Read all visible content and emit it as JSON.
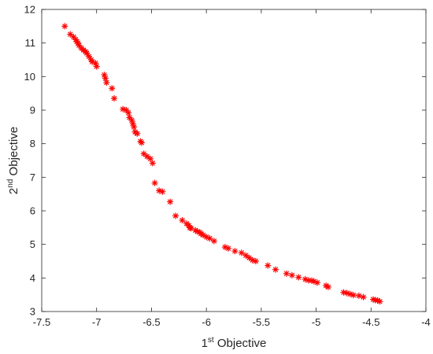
{
  "chart_data": {
    "type": "scatter",
    "title": "",
    "xlabel": {
      "base": "1",
      "sup": "st",
      "rest": " Objective"
    },
    "ylabel": {
      "base": "2",
      "sup": "nd",
      "rest": " Objective"
    },
    "xlim": [
      -7.5,
      -4
    ],
    "ylim": [
      3,
      12
    ],
    "xticks": [
      -7.5,
      -7,
      -6.5,
      -6,
      -5.5,
      -5,
      -4.5,
      -4
    ],
    "yticks": [
      3,
      4,
      5,
      6,
      7,
      8,
      9,
      10,
      11,
      12
    ],
    "xtick_labels": [
      "-7.5",
      "-7",
      "-6.5",
      "-6",
      "-5.5",
      "-5",
      "-4.5",
      "-4"
    ],
    "ytick_labels": [
      "3",
      "4",
      "5",
      "6",
      "7",
      "8",
      "9",
      "10",
      "11",
      "12"
    ],
    "grid": false,
    "marker": "asterisk",
    "colors": {
      "marker": "#ff0000",
      "axes": "#262626"
    },
    "series": [
      {
        "points": [
          [
            -7.29,
            11.5
          ],
          [
            -7.24,
            11.26
          ],
          [
            -7.21,
            11.18
          ],
          [
            -7.19,
            11.1
          ],
          [
            -7.18,
            11.04
          ],
          [
            -7.17,
            11.0
          ],
          [
            -7.16,
            10.93
          ],
          [
            -7.14,
            10.85
          ],
          [
            -7.12,
            10.79
          ],
          [
            -7.1,
            10.74
          ],
          [
            -7.09,
            10.7
          ],
          [
            -7.07,
            10.6
          ],
          [
            -7.05,
            10.5
          ],
          [
            -7.04,
            10.44
          ],
          [
            -7.01,
            10.4
          ],
          [
            -7.0,
            10.3
          ],
          [
            -6.93,
            10.05
          ],
          [
            -6.92,
            9.95
          ],
          [
            -6.91,
            9.82
          ],
          [
            -6.86,
            9.65
          ],
          [
            -6.84,
            9.35
          ],
          [
            -6.76,
            9.03
          ],
          [
            -6.73,
            9.0
          ],
          [
            -6.71,
            8.92
          ],
          [
            -6.7,
            8.78
          ],
          [
            -6.68,
            8.7
          ],
          [
            -6.67,
            8.6
          ],
          [
            -6.66,
            8.5
          ],
          [
            -6.65,
            8.35
          ],
          [
            -6.63,
            8.3
          ],
          [
            -6.6,
            8.07
          ],
          [
            -6.59,
            8.03
          ],
          [
            -6.57,
            7.7
          ],
          [
            -6.54,
            7.62
          ],
          [
            -6.51,
            7.55
          ],
          [
            -6.49,
            7.42
          ],
          [
            -6.47,
            6.83
          ],
          [
            -6.43,
            6.6
          ],
          [
            -6.4,
            6.57
          ],
          [
            -6.33,
            6.27
          ],
          [
            -6.28,
            5.85
          ],
          [
            -6.22,
            5.72
          ],
          [
            -6.18,
            5.62
          ],
          [
            -6.16,
            5.56
          ],
          [
            -6.15,
            5.5
          ],
          [
            -6.14,
            5.48
          ],
          [
            -6.1,
            5.42
          ],
          [
            -6.08,
            5.38
          ],
          [
            -6.06,
            5.36
          ],
          [
            -6.05,
            5.32
          ],
          [
            -6.03,
            5.28
          ],
          [
            -6.0,
            5.22
          ],
          [
            -5.97,
            5.18
          ],
          [
            -5.93,
            5.1
          ],
          [
            -5.83,
            4.92
          ],
          [
            -5.8,
            4.88
          ],
          [
            -5.74,
            4.8
          ],
          [
            -5.68,
            4.75
          ],
          [
            -5.64,
            4.67
          ],
          [
            -5.61,
            4.6
          ],
          [
            -5.58,
            4.53
          ],
          [
            -5.55,
            4.5
          ],
          [
            -5.44,
            4.37
          ],
          [
            -5.37,
            4.25
          ],
          [
            -5.27,
            4.13
          ],
          [
            -5.22,
            4.08
          ],
          [
            -5.16,
            4.02
          ],
          [
            -5.1,
            3.96
          ],
          [
            -5.07,
            3.93
          ],
          [
            -5.04,
            3.92
          ],
          [
            -5.02,
            3.9
          ],
          [
            -4.99,
            3.86
          ],
          [
            -4.91,
            3.77
          ],
          [
            -4.89,
            3.73
          ],
          [
            -4.75,
            3.57
          ],
          [
            -4.72,
            3.55
          ],
          [
            -4.69,
            3.52
          ],
          [
            -4.66,
            3.49
          ],
          [
            -4.61,
            3.47
          ],
          [
            -4.57,
            3.43
          ],
          [
            -4.48,
            3.36
          ],
          [
            -4.46,
            3.34
          ],
          [
            -4.44,
            3.33
          ],
          [
            -4.42,
            3.3
          ]
        ]
      }
    ]
  }
}
